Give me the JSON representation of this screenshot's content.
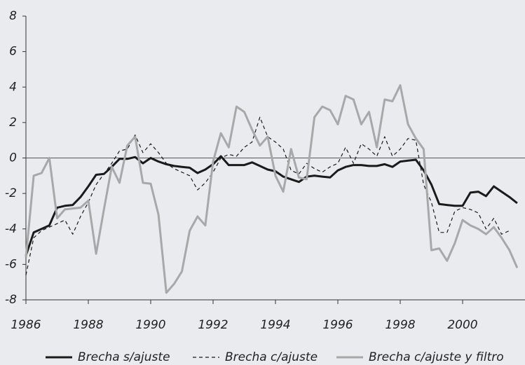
{
  "chart_data": {
    "type": "line",
    "x": [
      1986,
      1986.25,
      1986.5,
      1986.75,
      1987,
      1987.25,
      1987.5,
      1987.75,
      1988,
      1988.25,
      1988.5,
      1988.75,
      1989,
      1989.25,
      1989.5,
      1989.75,
      1990,
      1990.25,
      1990.5,
      1990.75,
      1991,
      1991.25,
      1991.5,
      1991.75,
      1992,
      1992.25,
      1992.5,
      1992.75,
      1993,
      1993.25,
      1993.5,
      1993.75,
      1994,
      1994.25,
      1994.5,
      1994.75,
      1995,
      1995.25,
      1995.5,
      1995.75,
      1996,
      1996.25,
      1996.5,
      1996.75,
      1997,
      1997.25,
      1997.5,
      1997.75,
      1998,
      1998.25,
      1998.5,
      1998.75,
      1999,
      1999.25,
      1999.5,
      1999.75,
      2000,
      2000.25,
      2000.5,
      2000.75,
      2001,
      2001.25,
      2001.5,
      2001.75
    ],
    "series": [
      {
        "name": "Brecha s/ajuste",
        "color": "#1a1a1a",
        "width": 3,
        "dashed": false,
        "values": [
          -5.5,
          -4.2,
          -4.0,
          -3.8,
          -2.8,
          -2.7,
          -2.65,
          -2.2,
          -1.6,
          -0.95,
          -0.9,
          -0.5,
          -0.05,
          -0.05,
          0.05,
          -0.3,
          0.0,
          -0.2,
          -0.35,
          -0.45,
          -0.5,
          -0.55,
          -0.85,
          -0.65,
          -0.35,
          0.1,
          -0.4,
          -0.4,
          -0.4,
          -0.25,
          -0.45,
          -0.65,
          -0.75,
          -1.05,
          -1.2,
          -1.35,
          -1.05,
          -1.0,
          -1.05,
          -1.1,
          -0.7,
          -0.5,
          -0.4,
          -0.4,
          -0.45,
          -0.45,
          -0.35,
          -0.5,
          -0.2,
          -0.15,
          -0.1,
          -0.7,
          -1.5,
          -2.6,
          -2.65,
          -2.7,
          -2.7,
          -1.95,
          -1.9,
          -2.15,
          -1.6,
          -1.9,
          -2.2,
          -2.55
        ]
      },
      {
        "name": "Brecha c/ajuste",
        "color": "#1a1a1a",
        "width": 1.2,
        "dashed": true,
        "values": [
          -6.6,
          -4.5,
          -4.1,
          -3.9,
          -3.7,
          -3.5,
          -4.3,
          -3.3,
          -2.5,
          -1.5,
          -0.9,
          -0.3,
          0.4,
          0.5,
          1.3,
          0.3,
          0.8,
          0.3,
          -0.3,
          -0.6,
          -0.8,
          -1.0,
          -1.8,
          -1.4,
          -0.8,
          0.0,
          0.2,
          0.1,
          0.6,
          0.9,
          2.3,
          1.2,
          0.9,
          0.5,
          -0.7,
          -0.9,
          -0.3,
          -0.6,
          -0.8,
          -0.5,
          -0.3,
          0.6,
          -0.3,
          0.8,
          0.5,
          0.1,
          1.2,
          0.1,
          0.5,
          1.1,
          1.0,
          -1.5,
          -2.5,
          -4.2,
          -4.2,
          -3.0,
          -2.8,
          -2.9,
          -3.1,
          -4.0,
          -3.4,
          -4.3,
          -4.1,
          null
        ]
      },
      {
        "name": "Brecha c/ajuste y filtro",
        "color": "#a8a8a8",
        "width": 3,
        "dashed": false,
        "values": [
          -5.6,
          -1.0,
          -0.85,
          0.0,
          -3.4,
          -2.9,
          -2.85,
          -2.8,
          -2.4,
          -5.4,
          -2.9,
          -0.5,
          -1.4,
          0.7,
          1.2,
          -1.4,
          -1.45,
          -3.2,
          -7.6,
          -7.1,
          -6.4,
          -4.1,
          -3.3,
          -3.8,
          -0.2,
          1.4,
          0.6,
          2.9,
          2.6,
          1.6,
          0.7,
          1.2,
          -1.0,
          -1.9,
          0.5,
          -1.1,
          -1.2,
          2.3,
          2.9,
          2.7,
          1.9,
          3.5,
          3.3,
          1.9,
          2.6,
          0.6,
          3.3,
          3.2,
          4.1,
          1.9,
          1.1,
          0.5,
          -5.2,
          -5.1,
          -5.8,
          -4.8,
          -3.5,
          -3.8,
          -4.0,
          -4.3,
          -3.9,
          -4.5,
          -5.2,
          -6.2
        ]
      }
    ],
    "xlim": [
      1986,
      2002
    ],
    "xticks": [
      1986,
      1988,
      1990,
      1992,
      1994,
      1996,
      1998,
      2000
    ],
    "ylim": [
      -8,
      8
    ],
    "yticks": [
      -8,
      -6,
      -4,
      -2,
      0,
      2,
      4,
      6,
      8
    ],
    "zero_line": true,
    "legend": "bottom"
  }
}
